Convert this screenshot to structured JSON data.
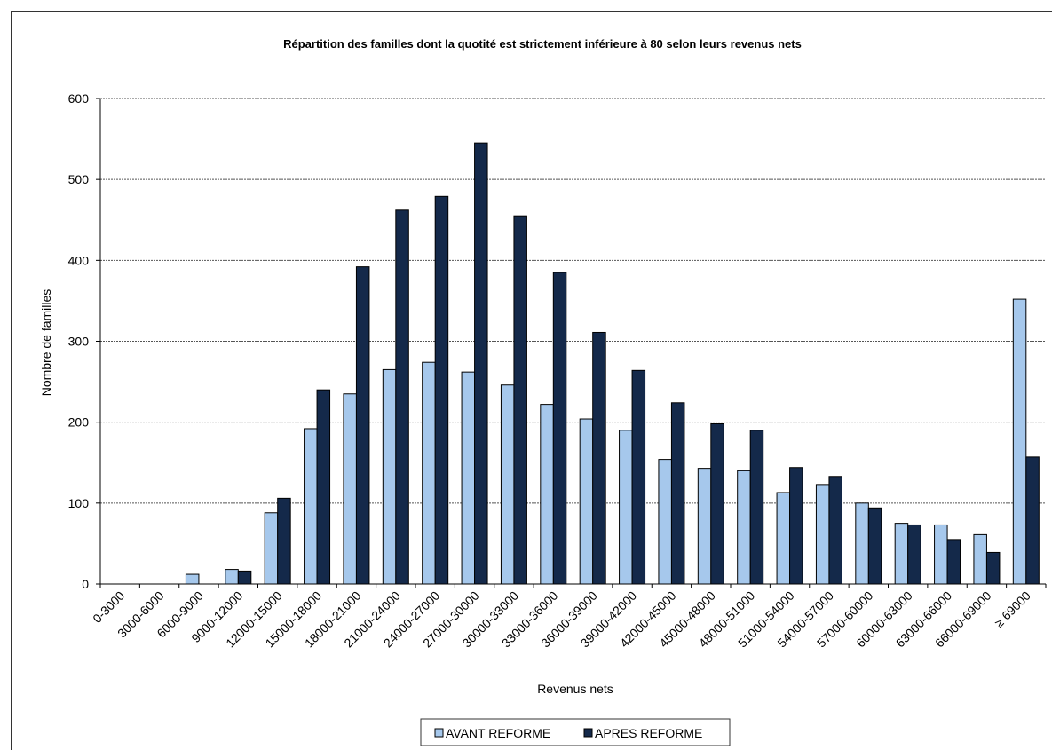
{
  "chart_data": {
    "type": "bar",
    "title": "Répartition des familles dont la quotité est strictement inférieure à 80  selon leurs revenus nets",
    "xlabel": "Revenus nets",
    "ylabel": "Nombre de familles",
    "ylim": [
      0,
      600
    ],
    "yticks": [
      0,
      100,
      200,
      300,
      400,
      500,
      600
    ],
    "grid": true,
    "legend_position": "bottom",
    "categories": [
      "0-3000",
      "3000-6000",
      "6000-9000",
      "9000-12000",
      "12000-15000",
      "15000-18000",
      "18000-21000",
      "21000-24000",
      "24000-27000",
      "27000-30000",
      "30000-33000",
      "33000-36000",
      "36000-39000",
      "39000-42000",
      "42000-45000",
      "45000-48000",
      "48000-51000",
      "51000-54000",
      "54000-57000",
      "57000-60000",
      "60000-63000",
      "63000-66000",
      "66000-69000",
      "≥ 69000"
    ],
    "series": [
      {
        "name": "AVANT REFORME",
        "color": "#a6c8ec",
        "values": [
          0,
          0,
          12,
          18,
          88,
          192,
          235,
          265,
          274,
          262,
          246,
          222,
          204,
          190,
          154,
          143,
          140,
          113,
          123,
          100,
          75,
          73,
          61,
          352
        ]
      },
      {
        "name": "APRES REFORME",
        "color": "#14294a",
        "values": [
          0,
          0,
          0,
          16,
          106,
          240,
          392,
          462,
          479,
          545,
          455,
          385,
          311,
          264,
          224,
          198,
          190,
          144,
          133,
          94,
          73,
          55,
          39,
          157
        ]
      }
    ]
  }
}
